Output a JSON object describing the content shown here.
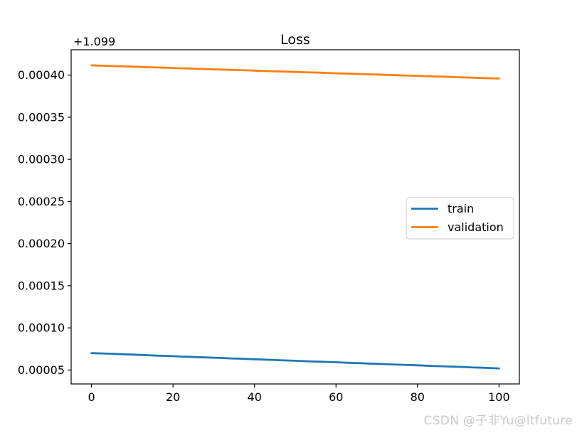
{
  "figure": {
    "title": "Loss",
    "y_offset_label": "+1.099"
  },
  "legend": {
    "entries": [
      {
        "label": "train",
        "color": "#1f77b4"
      },
      {
        "label": "validation",
        "color": "#ff7f0e"
      }
    ]
  },
  "watermark": {
    "text": "CSDN @子非Yu@ltfuture",
    "color": "#c9c9c9"
  },
  "colors": {
    "axis": "#000000",
    "legend_border": "#d4d4d4",
    "train": "#1f77b4",
    "validation": "#ff7f0e",
    "background": "#ffffff"
  },
  "chart_data": {
    "type": "line",
    "title": "Loss",
    "xlabel": "",
    "ylabel": "",
    "grid": false,
    "legend_position": "center right",
    "y_offset": 1.099,
    "y_offset_label": "+1.099",
    "xlim": [
      -5,
      105
    ],
    "ylim": [
      1.0990335,
      1.09943
    ],
    "xticks": {
      "values": [
        0,
        20,
        40,
        60,
        80,
        100
      ],
      "labels": [
        "0",
        "20",
        "40",
        "60",
        "80",
        "100"
      ]
    },
    "yticks": {
      "values": [
        1.09905,
        1.0991,
        1.09915,
        1.0992,
        1.09925,
        1.0993,
        1.09935,
        1.0994
      ],
      "labels": [
        "0.00005",
        "0.00010",
        "0.00015",
        "0.00020",
        "0.00025",
        "0.00030",
        "0.00035",
        "0.00040"
      ]
    },
    "x": [
      0,
      2,
      4,
      6,
      8,
      10,
      12,
      14,
      16,
      18,
      20,
      22,
      24,
      26,
      28,
      30,
      32,
      34,
      36,
      38,
      40,
      42,
      44,
      46,
      48,
      50,
      52,
      54,
      56,
      58,
      60,
      62,
      64,
      66,
      68,
      70,
      72,
      74,
      76,
      78,
      80,
      82,
      84,
      86,
      88,
      90,
      92,
      94,
      96,
      98,
      100
    ],
    "series": [
      {
        "name": "train",
        "color": "#1f77b4",
        "values": [
          1.09907,
          1.0990698,
          1.0990694,
          1.0990691,
          1.0990687,
          1.0990683,
          1.0990679,
          1.0990676,
          1.0990671,
          1.0990668,
          1.0990665,
          1.099066,
          1.0990657,
          1.0990653,
          1.099065,
          1.0990646,
          1.0990643,
          1.0990638,
          1.0990635,
          1.0990632,
          1.0990628,
          1.0990624,
          1.0990621,
          1.0990617,
          1.0990613,
          1.099061,
          1.0990606,
          1.0990602,
          1.0990599,
          1.0990596,
          1.0990592,
          1.0990588,
          1.0990584,
          1.0990581,
          1.0990577,
          1.0990574,
          1.099057,
          1.0990566,
          1.0990563,
          1.0990559,
          1.0990556,
          1.0990552,
          1.0990548,
          1.0990545,
          1.0990541,
          1.0990538,
          1.0990534,
          1.099053,
          1.0990527,
          1.0990523,
          1.099052
        ]
      },
      {
        "name": "validation",
        "color": "#ff7f0e",
        "values": [
          1.0994115,
          1.0994112,
          1.0994109,
          1.0994106,
          1.0994103,
          1.09941,
          1.0994096,
          1.0994093,
          1.099409,
          1.0994087,
          1.0994084,
          1.0994081,
          1.0994078,
          1.0994074,
          1.0994071,
          1.0994068,
          1.0994065,
          1.0994062,
          1.0994059,
          1.0994056,
          1.0994053,
          1.0994049,
          1.0994046,
          1.0994043,
          1.099404,
          1.0994037,
          1.0994034,
          1.0994031,
          1.0994028,
          1.0994024,
          1.0994021,
          1.0994018,
          1.0994015,
          1.0994012,
          1.0994009,
          1.0994006,
          1.0994003,
          1.0993999,
          1.0993996,
          1.0993993,
          1.099399,
          1.0993987,
          1.0993984,
          1.0993981,
          1.0993978,
          1.0993974,
          1.0993971,
          1.0993968,
          1.0993965,
          1.0993962,
          1.099396
        ]
      }
    ]
  }
}
